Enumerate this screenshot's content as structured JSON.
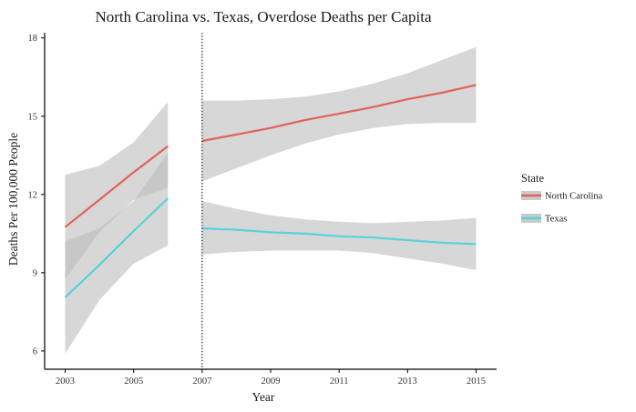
{
  "chart_data": {
    "type": "line",
    "title": "North Carolina vs. Texas, Overdose Deaths per Capita",
    "xlabel": "Year",
    "ylabel": "Deaths Per 100,000 People",
    "xlim": [
      2002.4,
      2015.6
    ],
    "ylim": [
      5.3,
      18.2
    ],
    "x_ticks": [
      2003,
      2005,
      2007,
      2009,
      2011,
      2013,
      2015
    ],
    "y_ticks": [
      6,
      9,
      12,
      15,
      18
    ],
    "grid": false,
    "vline": {
      "x": 2007,
      "style": "dotted"
    },
    "legend": {
      "title": "State",
      "position": "right"
    },
    "series": [
      {
        "name": "North Carolina",
        "color": "#e0625a",
        "segments": [
          {
            "x": [
              2003,
              2004,
              2005,
              2006
            ],
            "y": [
              10.75,
              11.8,
              12.85,
              13.85
            ],
            "ci_lower": [
              8.75,
              10.55,
              11.8,
              12.25
            ],
            "ci_upper": [
              12.75,
              13.1,
              14.0,
              15.55
            ]
          },
          {
            "x": [
              2007,
              2008,
              2009,
              2010,
              2011,
              2012,
              2013,
              2014,
              2015
            ],
            "y": [
              14.05,
              14.3,
              14.55,
              14.85,
              15.1,
              15.35,
              15.65,
              15.9,
              16.2
            ],
            "ci_lower": [
              12.5,
              13.0,
              13.5,
              13.95,
              14.3,
              14.55,
              14.7,
              14.75,
              14.75
            ],
            "ci_upper": [
              15.6,
              15.6,
              15.65,
              15.75,
              15.95,
              16.25,
              16.65,
              17.15,
              17.65
            ]
          }
        ]
      },
      {
        "name": "Texas",
        "color": "#5ad2d8",
        "segments": [
          {
            "x": [
              2003,
              2004,
              2005,
              2006
            ],
            "y": [
              8.05,
              9.3,
              10.6,
              11.85
            ],
            "ci_lower": [
              5.9,
              7.95,
              9.35,
              10.05
            ],
            "ci_upper": [
              10.2,
              10.7,
              11.75,
              13.6
            ]
          },
          {
            "x": [
              2007,
              2008,
              2009,
              2010,
              2011,
              2012,
              2013,
              2014,
              2015
            ],
            "y": [
              10.7,
              10.65,
              10.55,
              10.5,
              10.4,
              10.35,
              10.25,
              10.15,
              10.1
            ],
            "ci_lower": [
              9.7,
              9.8,
              9.85,
              9.85,
              9.85,
              9.75,
              9.55,
              9.35,
              9.1
            ],
            "ci_upper": [
              11.75,
              11.45,
              11.2,
              11.05,
              10.95,
              10.9,
              10.95,
              11.0,
              11.1
            ]
          }
        ]
      }
    ],
    "ribbon_color": "#bdbdbd",
    "ribbon_opacity": 0.6
  }
}
